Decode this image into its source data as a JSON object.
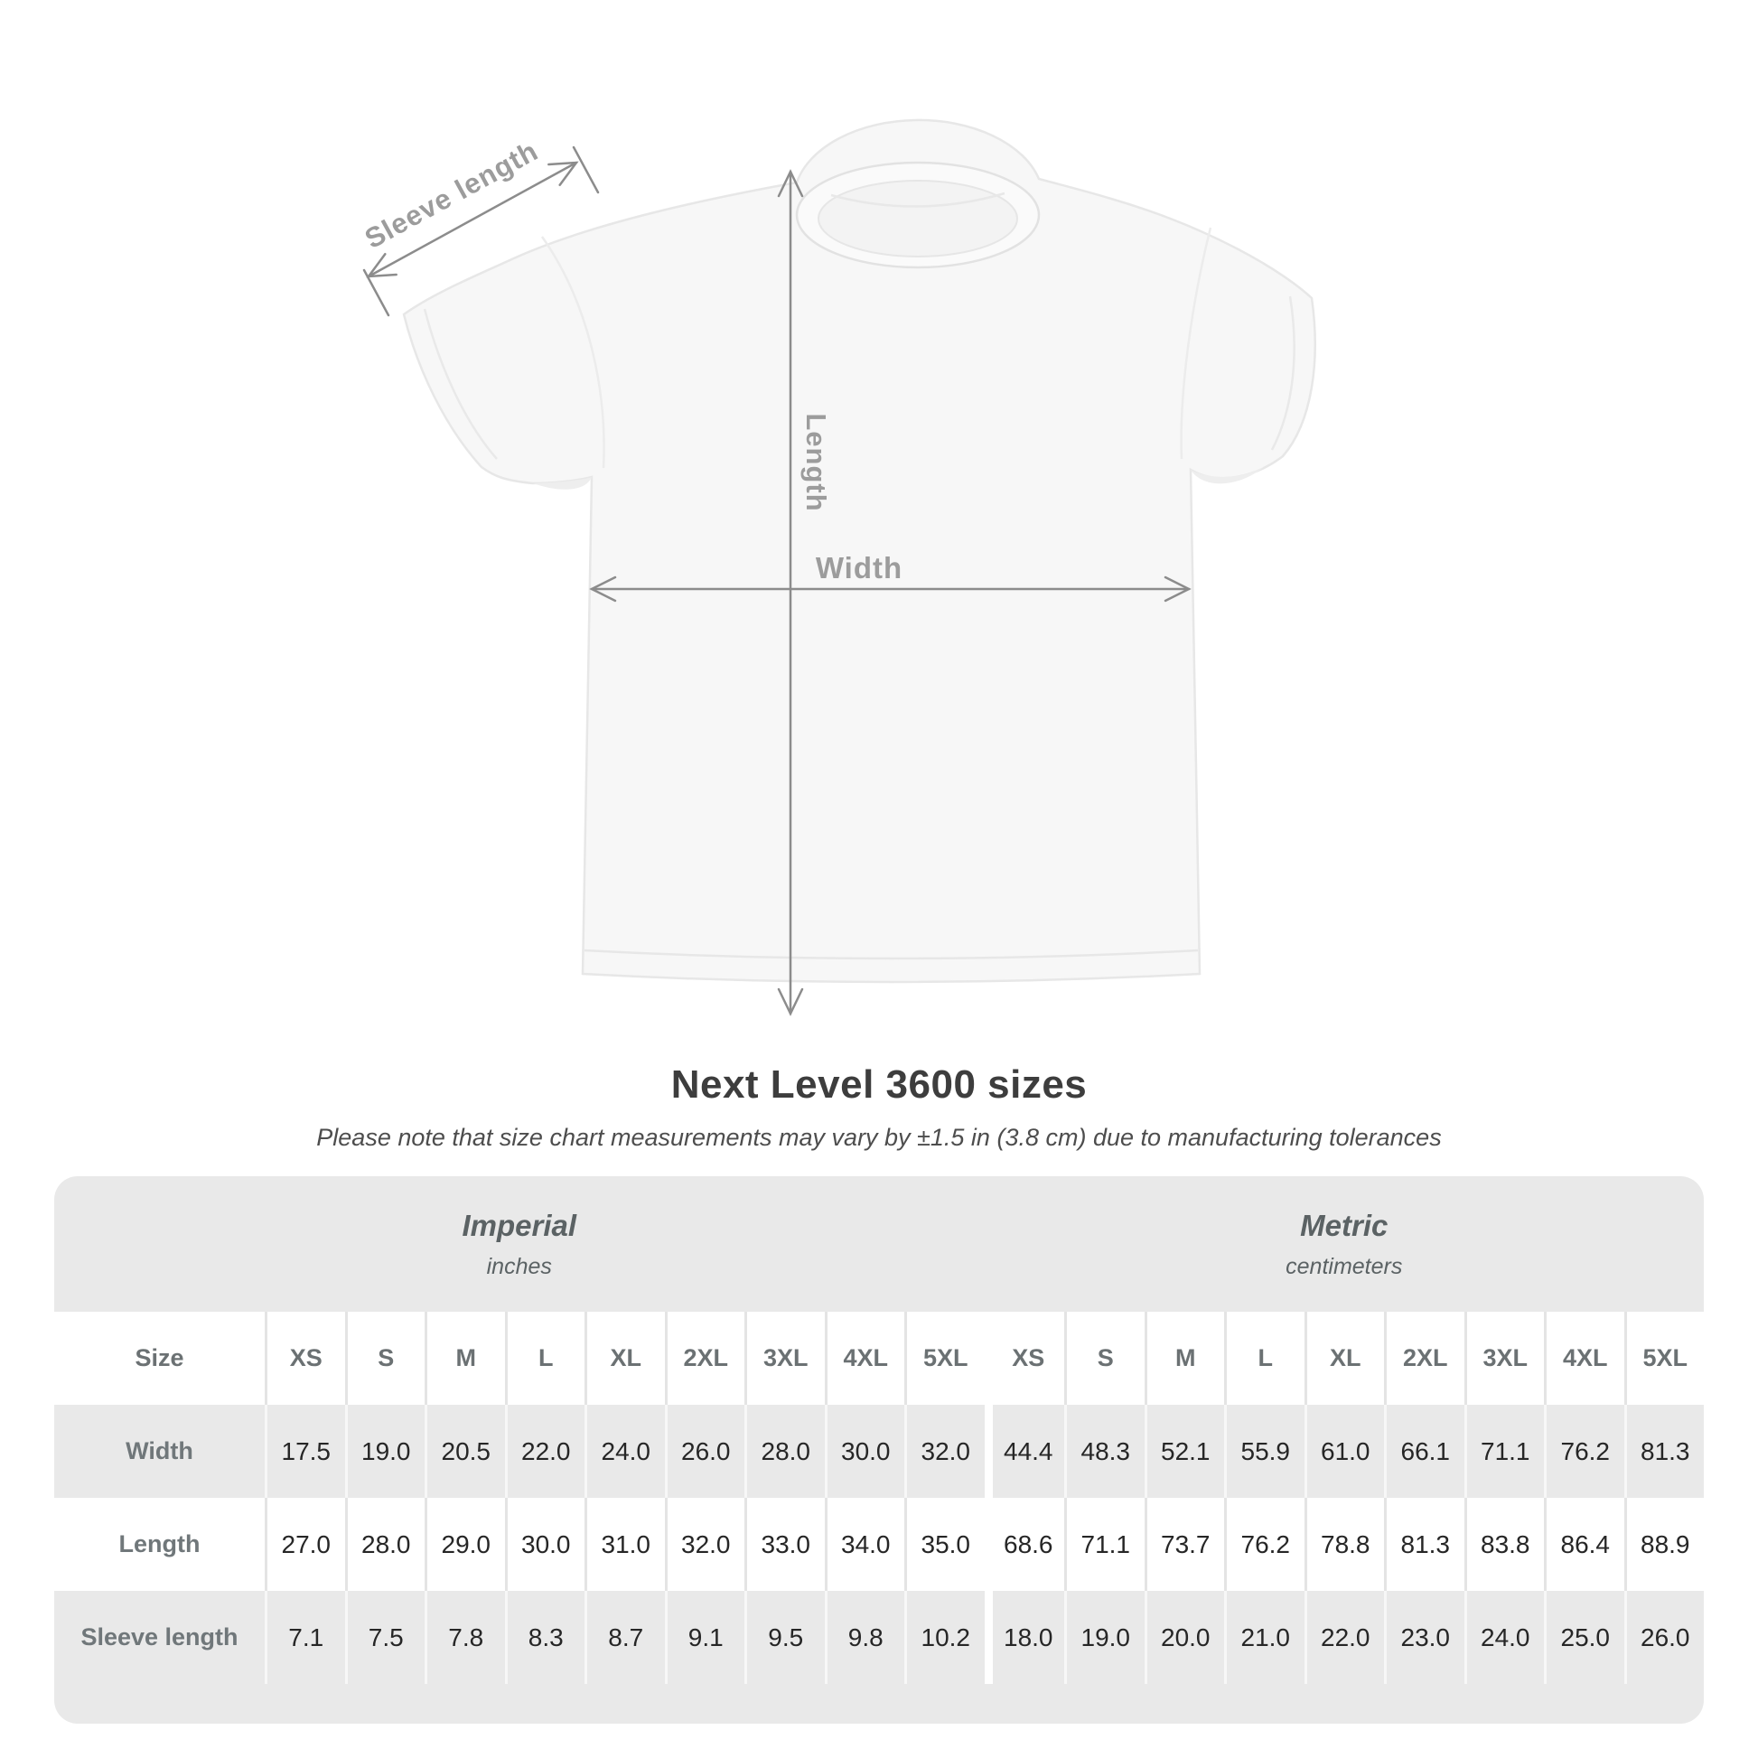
{
  "diagram": {
    "sleeve_length_label": "Sleeve length",
    "length_label": "Length",
    "width_label": "Width"
  },
  "heading": {
    "title": "Next Level 3600 sizes",
    "note": "Please note that size chart measurements may vary by ±1.5 in (3.8 cm) due to manufacturing tolerances"
  },
  "table": {
    "groups": [
      {
        "name": "Imperial",
        "unit": "inches"
      },
      {
        "name": "Metric",
        "unit": "centimeters"
      }
    ],
    "header_label": "Size",
    "sizes": [
      "XS",
      "S",
      "M",
      "L",
      "XL",
      "2XL",
      "3XL",
      "4XL",
      "5XL"
    ],
    "rows": [
      {
        "label": "Width",
        "imperial": [
          "17.5",
          "19.0",
          "20.5",
          "22.0",
          "24.0",
          "26.0",
          "28.0",
          "30.0",
          "32.0"
        ],
        "metric": [
          "44.4",
          "48.3",
          "52.1",
          "55.9",
          "61.0",
          "66.1",
          "71.1",
          "76.2",
          "81.3"
        ]
      },
      {
        "label": "Length",
        "imperial": [
          "27.0",
          "28.0",
          "29.0",
          "30.0",
          "31.0",
          "32.0",
          "33.0",
          "34.0",
          "35.0"
        ],
        "metric": [
          "68.6",
          "71.1",
          "73.7",
          "76.2",
          "78.8",
          "81.3",
          "83.8",
          "86.4",
          "88.9"
        ]
      },
      {
        "label": "Sleeve length",
        "imperial": [
          "7.1",
          "7.5",
          "7.8",
          "8.3",
          "8.7",
          "9.1",
          "9.5",
          "9.8",
          "10.2"
        ],
        "metric": [
          "18.0",
          "19.0",
          "20.0",
          "21.0",
          "22.0",
          "23.0",
          "24.0",
          "25.0",
          "26.0"
        ]
      }
    ]
  },
  "colors": {
    "table_bg": "#e9e9e9",
    "row_white": "#ffffff",
    "text_dark": "#262626",
    "text_heading": "#3d3d3d",
    "text_muted": "#6b7173",
    "dim_line": "#8c8c8c",
    "dim_label": "#9c9c9c",
    "shirt_fill": "#f7f7f7"
  }
}
